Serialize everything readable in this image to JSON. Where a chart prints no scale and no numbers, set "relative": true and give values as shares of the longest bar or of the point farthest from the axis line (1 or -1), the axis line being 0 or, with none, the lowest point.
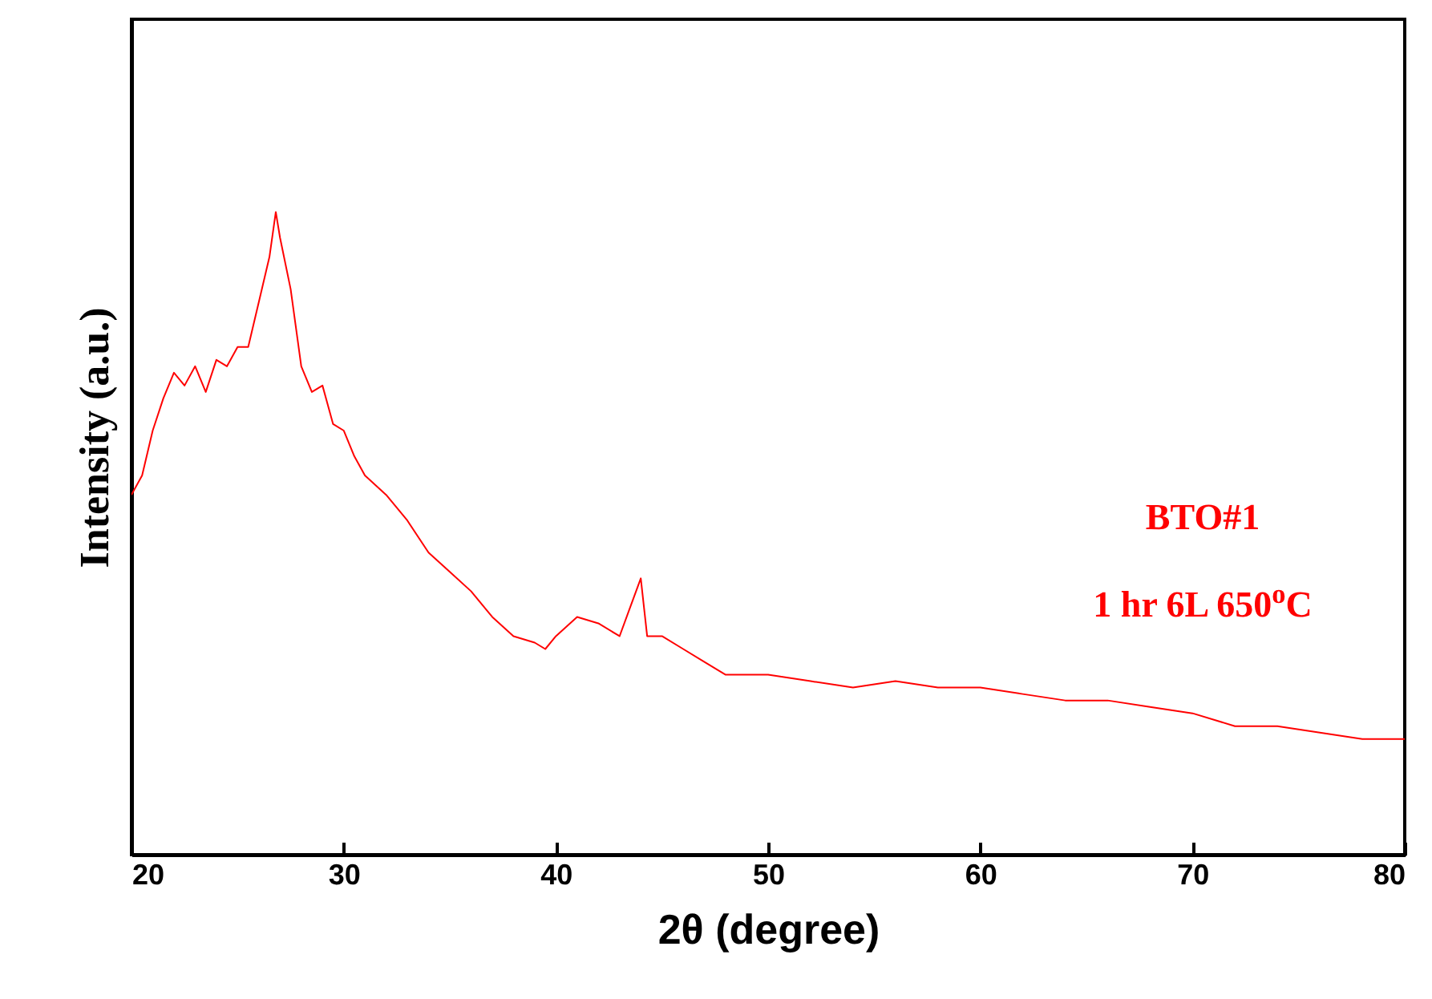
{
  "chart_data": {
    "type": "line",
    "relative": true,
    "xlabel": "2θ (degree)",
    "ylabel": "Intensity (a.u.)",
    "annotations": [
      "BTO#1",
      "1 hr 6L 650$^{o}$C"
    ],
    "xlim": [
      20,
      80
    ],
    "xticks": [
      20,
      30,
      40,
      50,
      60,
      70,
      80
    ],
    "grid": false,
    "series": [
      {
        "color": "#ff0000",
        "x": [
          20,
          20.5,
          21,
          21.5,
          22,
          22.5,
          23,
          23.5,
          24,
          24.5,
          25,
          25.5,
          26,
          26.5,
          26.8,
          27,
          27.5,
          28,
          28.5,
          29,
          29.5,
          30,
          30.5,
          31,
          32,
          33,
          34,
          35,
          36,
          37,
          38,
          39,
          39.5,
          40,
          41,
          42,
          43,
          44,
          44.3,
          45,
          46,
          47,
          48,
          50,
          52,
          54,
          56,
          58,
          60,
          62,
          64,
          66,
          68,
          70,
          72,
          74,
          76,
          78,
          80
        ],
        "values": [
          0.56,
          0.59,
          0.66,
          0.71,
          0.75,
          0.73,
          0.76,
          0.72,
          0.77,
          0.76,
          0.79,
          0.79,
          0.86,
          0.93,
          1,
          0.96,
          0.88,
          0.76,
          0.72,
          0.73,
          0.67,
          0.66,
          0.62,
          0.59,
          0.56,
          0.52,
          0.47,
          0.44,
          0.41,
          0.37,
          0.34,
          0.33,
          0.32,
          0.34,
          0.37,
          0.36,
          0.34,
          0.43,
          0.34,
          0.34,
          0.32,
          0.3,
          0.28,
          0.28,
          0.27,
          0.26,
          0.27,
          0.26,
          0.26,
          0.25,
          0.24,
          0.24,
          0.23,
          0.22,
          0.2,
          0.2,
          0.19,
          0.18,
          0.18
        ]
      }
    ]
  }
}
